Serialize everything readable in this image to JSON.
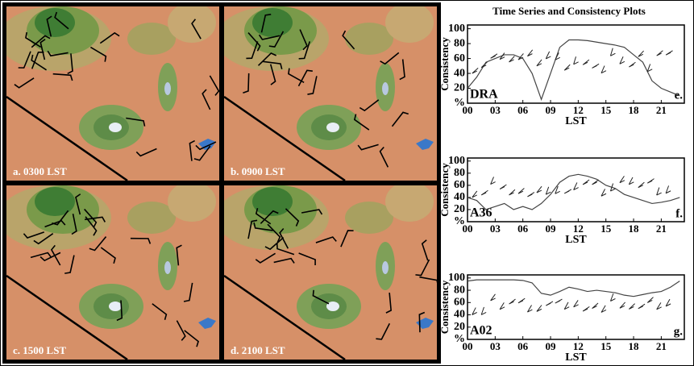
{
  "title": "Time Series and Consistency Plots",
  "maps": [
    {
      "label": "a. 0300 LST"
    },
    {
      "label": "b. 0900 LST"
    },
    {
      "label": "c. 1500 LST"
    },
    {
      "label": "d. 2100 LST"
    }
  ],
  "chart_data": [
    {
      "type": "line",
      "station": "DRA",
      "panel": "e.",
      "color": "#444444",
      "x": [
        0,
        1,
        2,
        3,
        4,
        5,
        6,
        7,
        8,
        9,
        10,
        11,
        12,
        13,
        14,
        15,
        16,
        17,
        18,
        19,
        20,
        21,
        22,
        23
      ],
      "values": [
        20,
        35,
        55,
        60,
        65,
        65,
        60,
        40,
        5,
        40,
        75,
        85,
        85,
        84,
        82,
        80,
        78,
        75,
        65,
        55,
        30,
        20,
        15,
        10
      ],
      "xlim": [
        0,
        23.5
      ],
      "ylim": [
        0,
        105
      ],
      "xticks": [
        {
          "value": 0,
          "label": "00"
        },
        {
          "value": 3,
          "label": "03"
        },
        {
          "value": 6,
          "label": "06"
        },
        {
          "value": 9,
          "label": "09"
        },
        12,
        15,
        18,
        21
      ],
      "yticks": [
        20,
        40,
        60,
        80,
        100
      ],
      "ylabel": "Consistency",
      "yunit": "%",
      "xlabel": "LST"
    },
    {
      "type": "line",
      "station": "A36",
      "panel": "f.",
      "color": "#444444",
      "x": [
        0,
        1,
        2,
        3,
        4,
        5,
        6,
        7,
        8,
        9,
        10,
        11,
        12,
        13,
        14,
        15,
        16,
        17,
        18,
        19,
        20,
        21,
        22,
        23
      ],
      "values": [
        40,
        35,
        20,
        25,
        30,
        20,
        25,
        20,
        30,
        45,
        65,
        75,
        78,
        75,
        70,
        60,
        55,
        45,
        40,
        35,
        30,
        32,
        35,
        40
      ],
      "xlim": [
        0,
        23.5
      ],
      "ylim": [
        0,
        105
      ],
      "xticks": [
        {
          "value": 0,
          "label": "00"
        },
        {
          "value": 3,
          "label": "03"
        },
        {
          "value": 6,
          "label": "06"
        },
        {
          "value": 9,
          "label": "09"
        },
        12,
        15,
        18,
        21
      ],
      "yticks": [
        20,
        40,
        60,
        80,
        100
      ],
      "ylabel": "Consistency",
      "yunit": "%",
      "xlabel": "LST"
    },
    {
      "type": "line",
      "station": "A02",
      "panel": "g.",
      "color": "#444444",
      "x": [
        0,
        1,
        2,
        3,
        4,
        5,
        6,
        7,
        8,
        9,
        10,
        11,
        12,
        13,
        14,
        15,
        16,
        17,
        18,
        19,
        20,
        21,
        22,
        23
      ],
      "values": [
        95,
        97,
        97,
        97,
        97,
        97,
        96,
        92,
        75,
        72,
        78,
        85,
        82,
        78,
        80,
        78,
        76,
        72,
        70,
        73,
        76,
        78,
        85,
        95
      ],
      "xlim": [
        0,
        23.5
      ],
      "ylim": [
        0,
        105
      ],
      "xticks": [
        {
          "value": 0,
          "label": "00"
        },
        {
          "value": 3,
          "label": "03"
        },
        {
          "value": 6,
          "label": "06"
        },
        {
          "value": 9,
          "label": "09"
        },
        12,
        15,
        18,
        21
      ],
      "yticks": [
        20,
        40,
        60,
        80,
        100
      ],
      "ylabel": "Consistency",
      "yunit": "%",
      "xlabel": "LST"
    }
  ]
}
